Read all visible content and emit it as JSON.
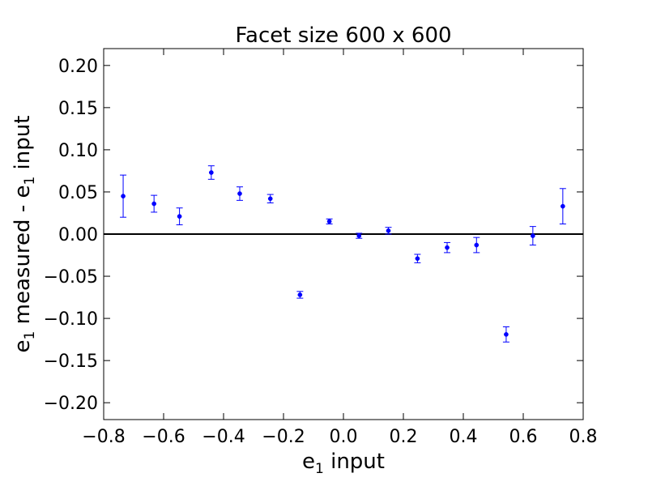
{
  "chart_data": {
    "type": "scatter",
    "title": "Facet size 600 x 600",
    "xlabel": "e$_1$ input",
    "ylabel": "e$_1$ measured - e$_1$ input",
    "xlim": [
      -0.8,
      0.8
    ],
    "ylim": [
      -0.22,
      0.22
    ],
    "xticks": [
      -0.8,
      -0.6,
      -0.4,
      -0.2,
      0.0,
      0.2,
      0.4,
      0.6,
      0.8
    ],
    "xtick_labels": [
      "−0.8",
      "−0.6",
      "−0.4",
      "−0.2",
      "0.0",
      "0.2",
      "0.4",
      "0.6",
      "0.8"
    ],
    "yticks": [
      0.2,
      0.15,
      0.1,
      0.05,
      0.0,
      -0.05,
      -0.1,
      -0.15,
      -0.2
    ],
    "ytick_labels": [
      "0.20",
      "0.15",
      "0.10",
      "0.05",
      "0.00",
      "−0.05",
      "−0.10",
      "−0.15",
      "−0.20"
    ],
    "reference_line_y": 0.0,
    "grid": false,
    "marker_color": "#0000ff",
    "points": [
      {
        "x": -0.735,
        "y": 0.045,
        "err": 0.025
      },
      {
        "x": -0.632,
        "y": 0.036,
        "err": 0.01
      },
      {
        "x": -0.547,
        "y": 0.021,
        "err": 0.01
      },
      {
        "x": -0.441,
        "y": 0.073,
        "err": 0.008
      },
      {
        "x": -0.346,
        "y": 0.048,
        "err": 0.008
      },
      {
        "x": -0.244,
        "y": 0.042,
        "err": 0.005
      },
      {
        "x": -0.145,
        "y": -0.072,
        "err": 0.004
      },
      {
        "x": -0.047,
        "y": 0.015,
        "err": 0.003
      },
      {
        "x": 0.052,
        "y": -0.002,
        "err": 0.003
      },
      {
        "x": 0.15,
        "y": 0.004,
        "err": 0.004
      },
      {
        "x": 0.247,
        "y": -0.029,
        "err": 0.005
      },
      {
        "x": 0.346,
        "y": -0.016,
        "err": 0.006
      },
      {
        "x": 0.444,
        "y": -0.013,
        "err": 0.009
      },
      {
        "x": 0.543,
        "y": -0.119,
        "err": 0.009
      },
      {
        "x": 0.632,
        "y": -0.002,
        "err": 0.011
      },
      {
        "x": 0.732,
        "y": 0.033,
        "err": 0.021
      }
    ]
  }
}
